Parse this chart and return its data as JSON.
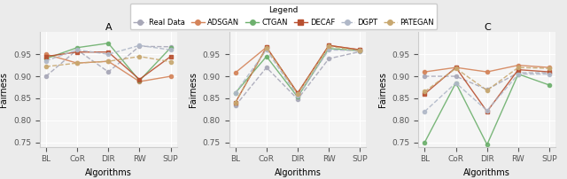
{
  "x_labels": [
    "BL",
    "CoR",
    "DIR",
    "RW",
    "SUP"
  ],
  "panel_titles": [
    "A",
    "B",
    "C"
  ],
  "series": {
    "Real Data": {
      "color": "#a8a8b8",
      "marker": "o",
      "linestyle": "--",
      "markersize": 3,
      "linewidth": 1.0,
      "data": {
        "A": [
          0.9,
          0.96,
          0.91,
          0.968,
          0.967
        ],
        "B": [
          0.833,
          0.92,
          0.848,
          0.94,
          0.956
        ],
        "C": [
          0.9,
          0.9,
          0.87,
          0.908,
          0.908
        ]
      }
    },
    "ADSGAN": {
      "color": "#d4845a",
      "marker": "o",
      "linestyle": "-",
      "markersize": 3,
      "linewidth": 1.0,
      "data": {
        "A": [
          0.95,
          0.93,
          0.934,
          0.888,
          0.9
        ],
        "B": [
          0.908,
          0.966,
          0.861,
          0.97,
          0.96
        ],
        "C": [
          0.91,
          0.92,
          0.91,
          0.925,
          0.92
        ]
      }
    },
    "CTGAN": {
      "color": "#6db06d",
      "marker": "o",
      "linestyle": "-",
      "markersize": 3,
      "linewidth": 1.0,
      "data": {
        "A": [
          0.94,
          0.965,
          0.975,
          0.89,
          0.965
        ],
        "B": [
          0.862,
          0.945,
          0.853,
          0.963,
          0.958
        ],
        "C": [
          0.75,
          0.885,
          0.745,
          0.905,
          0.88
        ]
      }
    },
    "DECAF": {
      "color": "#b85030",
      "marker": "s",
      "linestyle": "-",
      "markersize": 3,
      "linewidth": 1.0,
      "data": {
        "A": [
          0.945,
          0.955,
          0.955,
          0.893,
          0.945
        ],
        "B": [
          0.84,
          0.966,
          0.862,
          0.97,
          0.96
        ],
        "C": [
          0.86,
          0.92,
          0.82,
          0.915,
          0.91
        ]
      }
    },
    "DGPT": {
      "color": "#b0b8c8",
      "marker": "o",
      "linestyle": "--",
      "markersize": 3,
      "linewidth": 1.0,
      "data": {
        "A": [
          0.935,
          0.96,
          0.95,
          0.97,
          0.96
        ],
        "B": [
          0.862,
          0.96,
          0.855,
          0.96,
          0.958
        ],
        "C": [
          0.82,
          0.885,
          0.822,
          0.905,
          0.905
        ]
      }
    },
    "PATEGAN": {
      "color": "#c8a870",
      "marker": "o",
      "linestyle": "--",
      "markersize": 3,
      "linewidth": 1.0,
      "data": {
        "A": [
          0.922,
          0.93,
          0.934,
          0.945,
          0.933
        ],
        "B": [
          0.84,
          0.965,
          0.86,
          0.968,
          0.958
        ],
        "C": [
          0.865,
          0.918,
          0.868,
          0.92,
          0.918
        ]
      }
    }
  },
  "ylim_A": [
    0.74,
    1.0
  ],
  "ylim_B": [
    0.74,
    1.0
  ],
  "ylim_C": [
    0.74,
    1.0
  ],
  "yticks": [
    0.75,
    0.8,
    0.85,
    0.9,
    0.95
  ],
  "ylabel": "Fairness",
  "xlabel": "Algorithms",
  "legend_title": "Legend",
  "background_color": "#f5f5f5",
  "grid_color": "#ffffff",
  "fig_bg": "#ebebeb"
}
